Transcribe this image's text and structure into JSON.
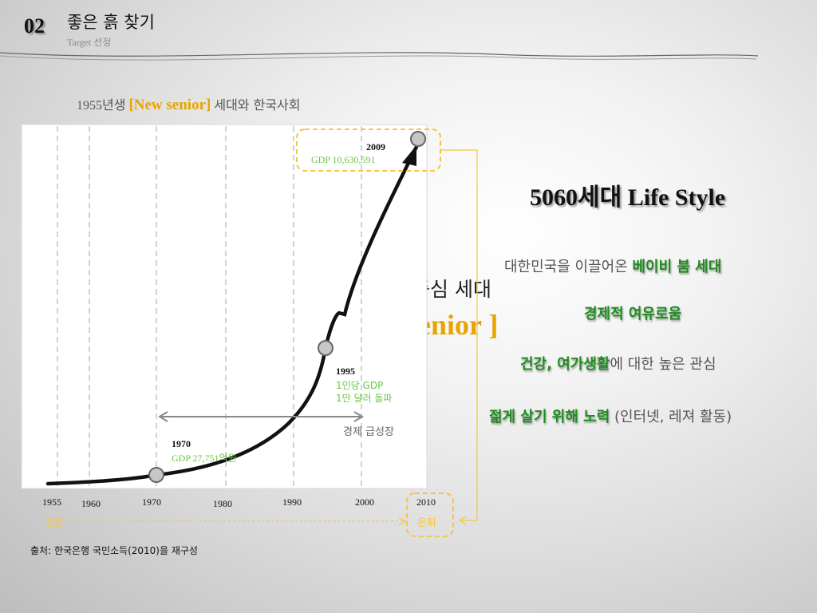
{
  "header": {
    "section_number": "02",
    "title": "좋은 흙 찾기",
    "subtitle_en": "Target",
    "subtitle_kr": "선정"
  },
  "chart": {
    "caption_prefix": "1955년생",
    "caption_highlight": "[New senior]",
    "caption_suffix": "세대와 한국사회",
    "years": [
      "1955",
      "1960",
      "1970",
      "1980",
      "1990",
      "2000",
      "2010"
    ],
    "annotations": [
      {
        "year": "2009",
        "line1": "GDP 10,630,591",
        "line2": ""
      },
      {
        "year": "1995",
        "line1": "1인당 GDP",
        "line2": "1만 달러 돌파"
      },
      {
        "year": "1970",
        "line1": "GDP 27,751억원",
        "line2": ""
      }
    ],
    "arrow_label": "경제 급성장",
    "start_label": "성장",
    "end_label": "은퇴",
    "behind_text_1": "중심 세대",
    "behind_text_2": "enior ]"
  },
  "source": "출처: 한국은행 국민소득(2010)을 재구성",
  "lifestyle": {
    "title_num": "5060",
    "title_kr": "세대",
    "title_en": "Life Style",
    "line1_plain": "대한민국을 이끌어온",
    "line1_green": "베이비 붐 세대",
    "line2_green": "경제적 여유로움",
    "line3_green": "건강, 여가생활",
    "line3_plain": "에 대한 높은 관심",
    "line4_green": "젊게 살기 위해 노력",
    "line4_plain": "(인터넷, 레져 활동)"
  },
  "colors": {
    "accent_yellow": "#e8a400",
    "green": "#1e8c1e",
    "light_green": "#6cc644",
    "dashed_box": "#f5c542"
  }
}
